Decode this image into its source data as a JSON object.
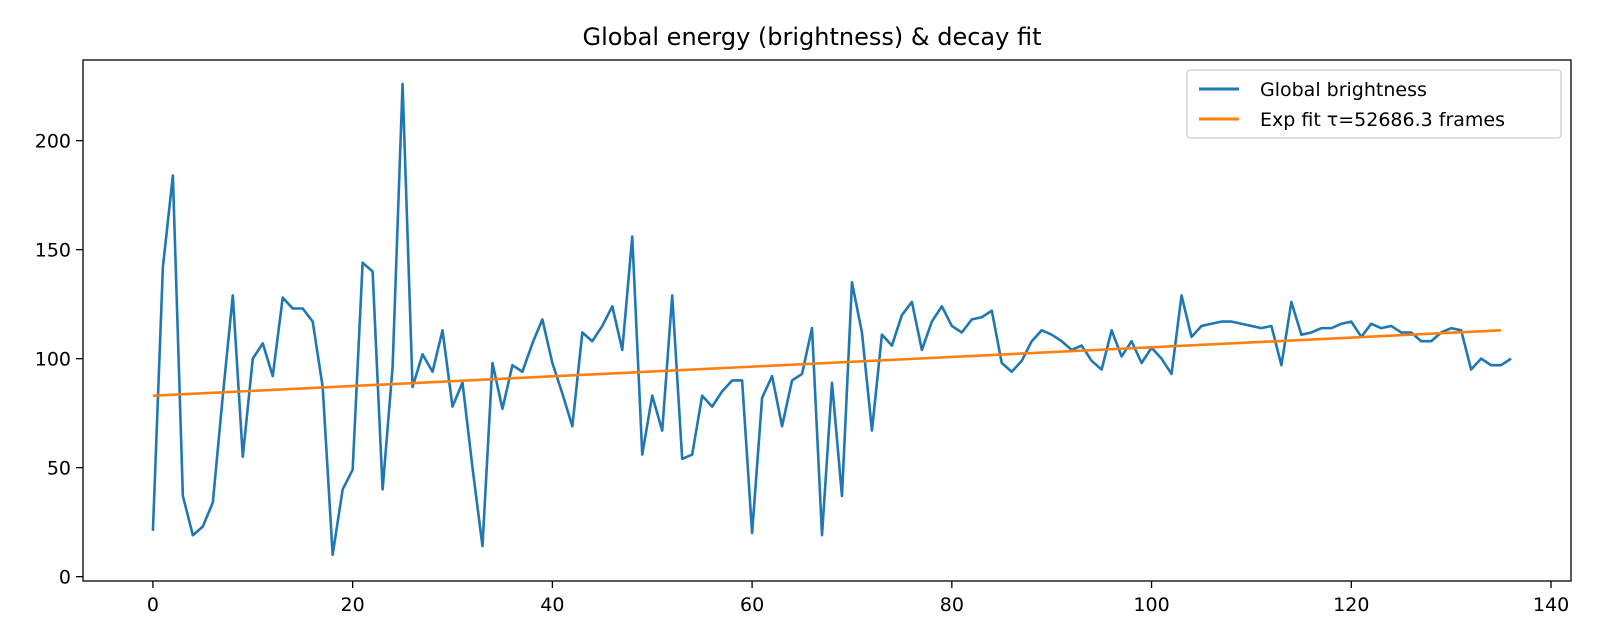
{
  "chart_data": {
    "type": "line",
    "title": "Global energy (brightness) & decay fit",
    "xlabel": "",
    "ylabel": "",
    "xlim": [
      -7,
      142
    ],
    "ylim": [
      -2,
      237
    ],
    "x_ticks": [
      0,
      20,
      40,
      60,
      80,
      100,
      120,
      140
    ],
    "y_ticks": [
      0,
      50,
      100,
      150,
      200
    ],
    "grid": false,
    "legend_position": "top-right",
    "series": [
      {
        "name": "Global brightness",
        "color": "#1f77b4",
        "x_start": 0,
        "x_step": 1,
        "values": [
          21,
          142,
          184,
          37,
          19,
          23,
          34,
          83,
          129,
          55,
          100,
          107,
          92,
          128,
          123,
          123,
          117,
          87,
          10,
          40,
          49,
          144,
          140,
          40,
          96,
          226,
          87,
          102,
          94,
          113,
          78,
          89,
          50,
          14,
          98,
          77,
          97,
          94,
          107,
          118,
          98,
          84,
          69,
          112,
          108,
          115,
          124,
          104,
          156,
          56,
          83,
          67,
          129,
          54,
          56,
          83,
          78,
          85,
          90,
          90,
          20,
          82,
          92,
          69,
          90,
          93,
          114,
          19,
          89,
          37,
          135,
          112,
          67,
          111,
          106,
          120,
          126,
          104,
          117,
          124,
          115,
          112,
          118,
          119,
          122,
          98,
          94,
          99,
          108,
          113,
          111,
          108,
          104,
          106,
          99,
          95,
          113,
          101,
          108,
          98,
          105,
          100,
          93,
          129,
          110,
          115,
          116,
          117,
          117,
          116,
          115,
          114,
          115,
          97,
          126,
          111,
          112,
          114,
          114,
          116,
          117,
          110,
          116,
          114,
          115,
          112,
          112,
          108,
          108,
          112,
          114,
          113,
          95,
          100,
          97,
          97,
          100
        ]
      },
      {
        "name": "Exp fit τ=52686.3 frames",
        "color": "#ff7f0e",
        "x": [
          0,
          135
        ],
        "values": [
          83,
          113
        ]
      }
    ]
  }
}
